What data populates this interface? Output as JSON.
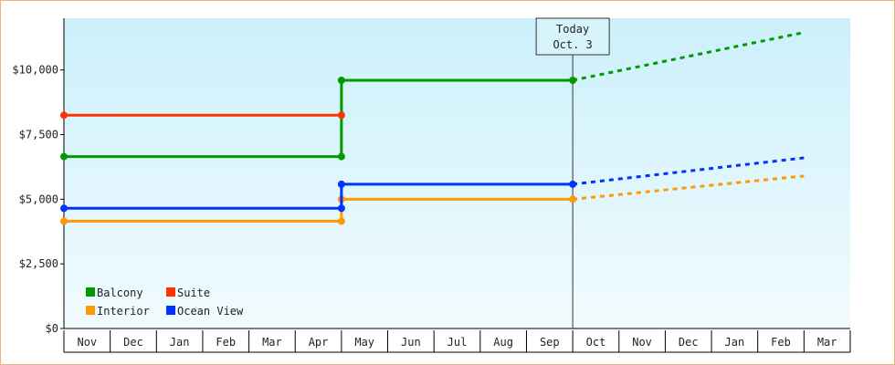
{
  "chart_data": {
    "type": "line",
    "x_axis": {
      "categories": [
        "Nov",
        "Dec",
        "Jan",
        "Feb",
        "Mar",
        "Apr",
        "May",
        "Jun",
        "Jul",
        "Aug",
        "Sep",
        "Oct",
        "Nov",
        "Dec",
        "Jan",
        "Feb",
        "Mar"
      ]
    },
    "y_axis": {
      "ylim": [
        0,
        12000
      ],
      "ticks": [
        0,
        2500,
        5000,
        7500,
        10000
      ],
      "tick_labels": [
        "$0",
        "$2,500",
        "$5,000",
        "$7,500",
        "$10,000"
      ]
    },
    "today_marker": {
      "line1": "Today",
      "line2": "Oct. 3",
      "x": 11
    },
    "series": [
      {
        "name": "Balcony",
        "color": "#009900",
        "points": [
          [
            0,
            6650
          ],
          [
            6,
            6650
          ],
          [
            6,
            9600
          ],
          [
            11,
            9600
          ]
        ],
        "forecast": [
          [
            11,
            9600
          ],
          [
            16,
            11450
          ]
        ]
      },
      {
        "name": "Suite",
        "color": "#ff3300",
        "points": [
          [
            0,
            8250
          ],
          [
            6,
            8250
          ]
        ],
        "forecast": []
      },
      {
        "name": "Interior",
        "color": "#ff9900",
        "points": [
          [
            0,
            4150
          ],
          [
            6,
            4150
          ],
          [
            6,
            5000
          ],
          [
            11,
            5000
          ]
        ],
        "forecast": [
          [
            11,
            5000
          ],
          [
            16,
            5900
          ]
        ]
      },
      {
        "name": "Ocean View",
        "color": "#0033ff",
        "points": [
          [
            0,
            4650
          ],
          [
            6,
            4650
          ],
          [
            6,
            5580
          ],
          [
            11,
            5580
          ]
        ],
        "forecast": [
          [
            11,
            5580
          ],
          [
            16,
            6600
          ]
        ]
      }
    ],
    "legend_position": "bottom-left",
    "grid": false
  }
}
